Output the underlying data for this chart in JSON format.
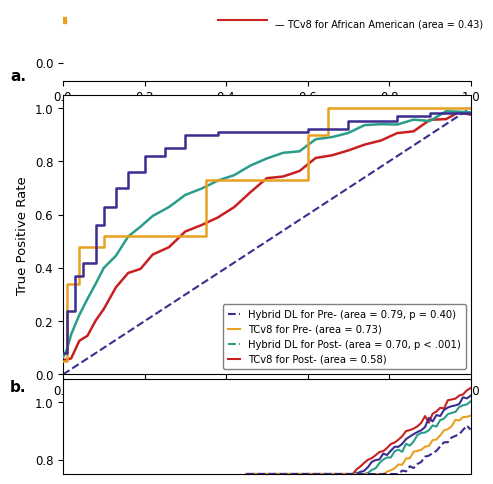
{
  "title_panel": "a.",
  "title_panel_b": "b.",
  "xlabel": "False Positive Rate",
  "ylabel": "True Positive Rate",
  "xlim": [
    0.0,
    1.0
  ],
  "ylim": [
    0.0,
    1.05
  ],
  "xticks": [
    0.0,
    0.2,
    0.4,
    0.6,
    0.8,
    1.0
  ],
  "yticks": [
    0.0,
    0.2,
    0.4,
    0.6,
    0.8,
    1.0
  ],
  "background_color": "#ffffff",
  "legend_entries": [
    "Hybrid DL for Pre- (area = 0.79, p = 0.40)",
    "TCv8 for Pre- (area = 0.73)",
    "Hybrid DL for Post- (area = 0.70, p < .001)",
    "TCv8 for Post- (area = 0.58)"
  ],
  "legend_entries_top": [
    "TCv8 for African American (area = 0.43)"
  ],
  "colors": {
    "hybrid_pre": "#3b2d8f",
    "tcv8_pre": "#e8a020",
    "hybrid_post": "#2a9d8a",
    "tcv8_post": "#c82020",
    "diagonal": "#3b2d8f",
    "red_top": "#cc2222",
    "orange_top": "#e8a020"
  },
  "hybrid_pre_fpr": [
    0,
    0.01,
    0.01,
    0.03,
    0.03,
    0.05,
    0.05,
    0.08,
    0.08,
    0.1,
    0.1,
    0.13,
    0.13,
    0.16,
    0.16,
    0.2,
    0.2,
    0.25,
    0.25,
    0.3,
    0.3,
    0.38,
    0.38,
    0.5,
    0.5,
    0.6,
    0.6,
    0.7,
    0.7,
    0.82,
    0.82,
    0.9,
    0.9,
    1.0
  ],
  "hybrid_pre_tpr": [
    0.08,
    0.08,
    0.24,
    0.24,
    0.37,
    0.37,
    0.42,
    0.42,
    0.56,
    0.56,
    0.63,
    0.63,
    0.7,
    0.7,
    0.76,
    0.76,
    0.82,
    0.82,
    0.85,
    0.85,
    0.9,
    0.9,
    0.91,
    0.91,
    0.91,
    0.91,
    0.92,
    0.92,
    0.95,
    0.95,
    0.97,
    0.97,
    0.98,
    0.98
  ],
  "tcv8_pre_fpr": [
    0,
    0.01,
    0.01,
    0.04,
    0.04,
    0.1,
    0.1,
    0.2,
    0.2,
    0.35,
    0.35,
    0.5,
    0.5,
    0.6,
    0.6,
    0.65,
    0.65,
    0.75,
    0.75,
    0.88,
    0.88,
    1.0
  ],
  "tcv8_pre_tpr": [
    0.05,
    0.05,
    0.34,
    0.34,
    0.48,
    0.48,
    0.52,
    0.52,
    0.52,
    0.52,
    0.73,
    0.73,
    0.73,
    0.73,
    0.9,
    0.9,
    1.0,
    1.0,
    1.0,
    1.0,
    1.0,
    1.0
  ],
  "hybrid_post_fpr": [
    0,
    0.01,
    0.02,
    0.04,
    0.06,
    0.08,
    0.1,
    0.13,
    0.16,
    0.19,
    0.22,
    0.26,
    0.3,
    0.34,
    0.38,
    0.42,
    0.46,
    0.5,
    0.54,
    0.58,
    0.62,
    0.66,
    0.7,
    0.74,
    0.78,
    0.82,
    0.86,
    0.9,
    0.94,
    0.97,
    1.0
  ],
  "hybrid_post_tpr": [
    0.05,
    0.1,
    0.15,
    0.22,
    0.29,
    0.34,
    0.4,
    0.46,
    0.51,
    0.55,
    0.6,
    0.63,
    0.67,
    0.7,
    0.73,
    0.76,
    0.78,
    0.81,
    0.83,
    0.85,
    0.87,
    0.89,
    0.91,
    0.92,
    0.94,
    0.95,
    0.96,
    0.97,
    0.98,
    0.99,
    0.99
  ],
  "tcv8_post_fpr": [
    0,
    0.02,
    0.04,
    0.06,
    0.08,
    0.1,
    0.13,
    0.16,
    0.19,
    0.22,
    0.26,
    0.3,
    0.34,
    0.38,
    0.42,
    0.46,
    0.5,
    0.54,
    0.58,
    0.62,
    0.66,
    0.7,
    0.74,
    0.78,
    0.82,
    0.86,
    0.9,
    0.94,
    0.97,
    1.0
  ],
  "tcv8_post_tpr": [
    0.04,
    0.08,
    0.12,
    0.17,
    0.21,
    0.26,
    0.31,
    0.36,
    0.4,
    0.44,
    0.48,
    0.53,
    0.57,
    0.61,
    0.65,
    0.68,
    0.71,
    0.74,
    0.77,
    0.79,
    0.82,
    0.84,
    0.86,
    0.88,
    0.91,
    0.93,
    0.95,
    0.96,
    0.97,
    0.98
  ]
}
